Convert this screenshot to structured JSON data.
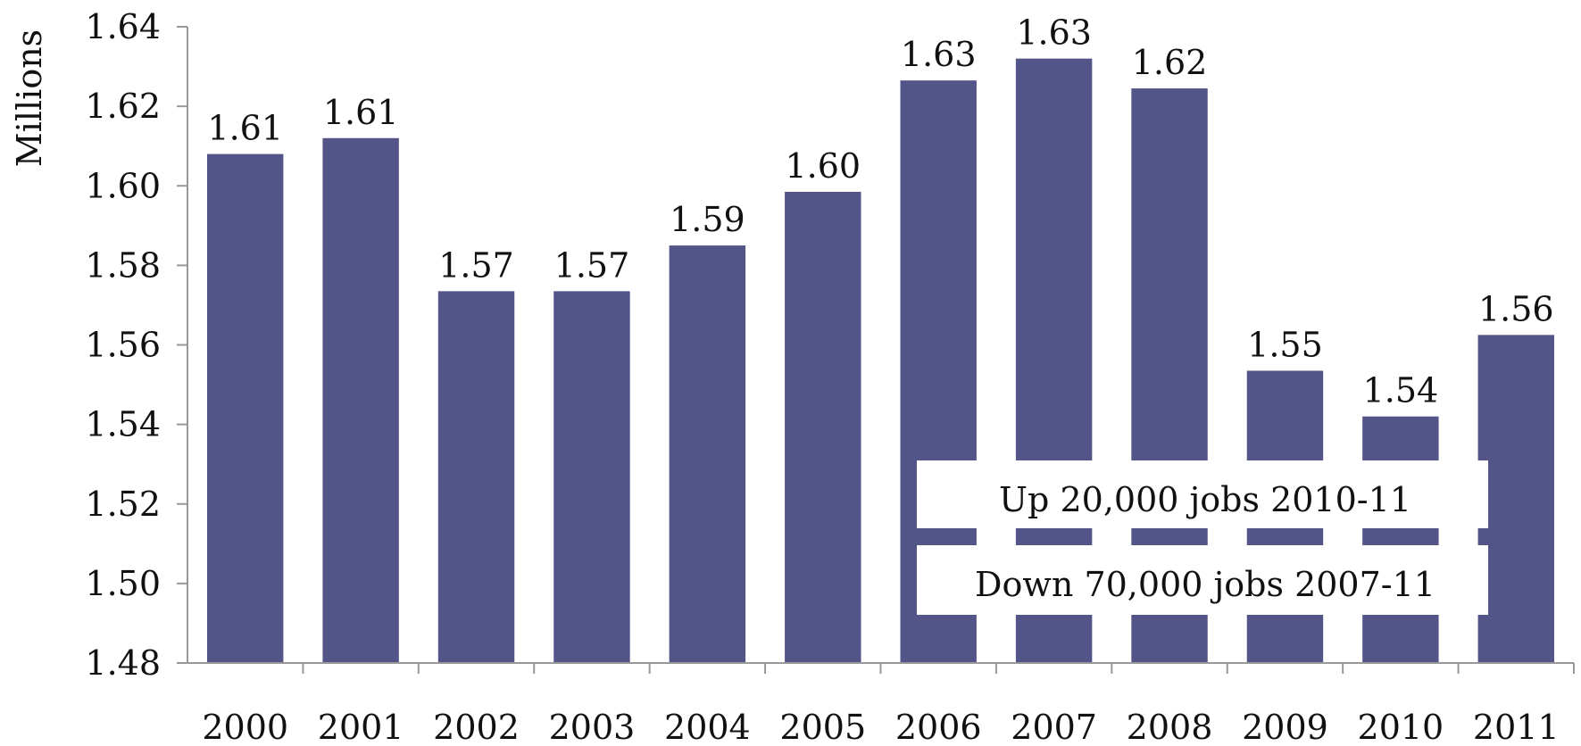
{
  "chart_data": {
    "type": "bar",
    "categories": [
      "2000",
      "2001",
      "2002",
      "2003",
      "2004",
      "2005",
      "2006",
      "2007",
      "2008",
      "2009",
      "2010",
      "2011"
    ],
    "values": [
      1.608,
      1.612,
      1.5735,
      1.5735,
      1.585,
      1.5985,
      1.6265,
      1.632,
      1.6245,
      1.5535,
      1.542,
      1.5625
    ],
    "data_labels": [
      "1.61",
      "1.61",
      "1.57",
      "1.57",
      "1.59",
      "1.60",
      "1.63",
      "1.63",
      "1.62",
      "1.55",
      "1.54",
      "1.56"
    ],
    "ylabel": "Millions",
    "ylim": [
      1.48,
      1.64
    ],
    "yticks": [
      "1.48",
      "1.50",
      "1.52",
      "1.54",
      "1.56",
      "1.58",
      "1.60",
      "1.62",
      "1.64"
    ],
    "grid": false,
    "bar_color": "#535488",
    "annotations": [
      "Up 20,000 jobs 2010-11",
      "Down 70,000 jobs 2007-11"
    ]
  }
}
